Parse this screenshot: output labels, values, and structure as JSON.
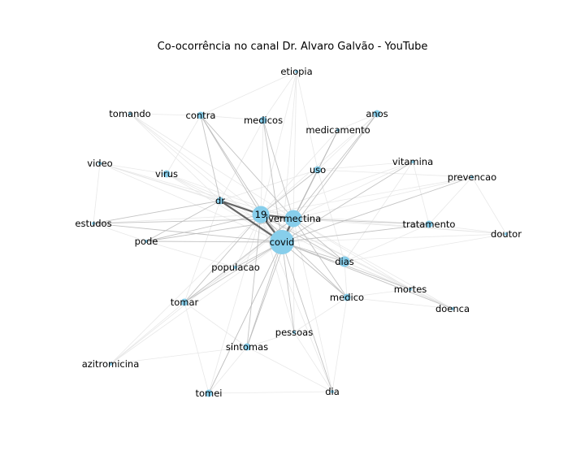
{
  "title": "Co-ocorrência no canal Dr. Alvaro Galvão - YouTube",
  "colors": {
    "node": "#87ceeb",
    "edge_light": "#e6e6e6",
    "edge_mid": "#b8b8b8",
    "edge_dark": "#555555",
    "background": "#ffffff",
    "text": "#000000"
  },
  "nodes": [
    {
      "id": "covid",
      "label": "covid",
      "weight": 5
    },
    {
      "id": "ivermectina",
      "label": "ivermectina",
      "weight": 3
    },
    {
      "id": "19",
      "label": "19",
      "weight": 3
    },
    {
      "id": "etiopia",
      "label": "etiopia",
      "weight": 0
    },
    {
      "id": "tomando",
      "label": "tomando",
      "weight": 0
    },
    {
      "id": "contra",
      "label": "contra",
      "weight": 1
    },
    {
      "id": "medicos",
      "label": "medicos",
      "weight": 1
    },
    {
      "id": "anos",
      "label": "anos",
      "weight": 1
    },
    {
      "id": "medicamento",
      "label": "medicamento",
      "weight": 0
    },
    {
      "id": "video",
      "label": "video",
      "weight": 0
    },
    {
      "id": "virus",
      "label": "virus",
      "weight": 1
    },
    {
      "id": "uso",
      "label": "uso",
      "weight": 1
    },
    {
      "id": "vitamina",
      "label": "vitamina",
      "weight": 0
    },
    {
      "id": "prevencao",
      "label": "prevencao",
      "weight": 0
    },
    {
      "id": "dr",
      "label": "dr",
      "weight": 1
    },
    {
      "id": "estudos",
      "label": "estudos",
      "weight": 0
    },
    {
      "id": "tratamento",
      "label": "tratamento",
      "weight": 1
    },
    {
      "id": "doutor",
      "label": "doutor",
      "weight": 0
    },
    {
      "id": "pode",
      "label": "pode",
      "weight": 0
    },
    {
      "id": "populacao",
      "label": "populacao",
      "weight": 0
    },
    {
      "id": "dias",
      "label": "dias",
      "weight": 2
    },
    {
      "id": "mortes",
      "label": "mortes",
      "weight": 0
    },
    {
      "id": "tomar",
      "label": "tomar",
      "weight": 1
    },
    {
      "id": "medico",
      "label": "medico",
      "weight": 1
    },
    {
      "id": "doenca",
      "label": "doenca",
      "weight": 0
    },
    {
      "id": "pessoas",
      "label": "pessoas",
      "weight": 0
    },
    {
      "id": "sintomas",
      "label": "sintomas",
      "weight": 1
    },
    {
      "id": "azitromicina",
      "label": "azitromicina",
      "weight": 0
    },
    {
      "id": "tomei",
      "label": "tomei",
      "weight": 1
    },
    {
      "id": "dia",
      "label": "dia",
      "weight": 0
    }
  ],
  "strong_edges": [
    [
      "covid",
      "19"
    ],
    [
      "covid",
      "ivermectina"
    ],
    [
      "19",
      "ivermectina"
    ],
    [
      "covid",
      "dr"
    ],
    [
      "19",
      "dr"
    ]
  ],
  "mid_edges": [
    [
      "covid",
      "contra"
    ],
    [
      "covid",
      "medicos"
    ],
    [
      "covid",
      "medicamento"
    ],
    [
      "covid",
      "uso"
    ],
    [
      "covid",
      "anos"
    ],
    [
      "covid",
      "tomar"
    ],
    [
      "covid",
      "sintomas"
    ],
    [
      "covid",
      "dias"
    ],
    [
      "covid",
      "medico"
    ],
    [
      "covid",
      "mortes"
    ],
    [
      "covid",
      "tratamento"
    ],
    [
      "covid",
      "populacao"
    ],
    [
      "covid",
      "estudos"
    ],
    [
      "covid",
      "pode"
    ],
    [
      "covid",
      "pessoas"
    ],
    [
      "covid",
      "dia"
    ],
    [
      "covid",
      "tomei"
    ],
    [
      "covid",
      "doenca"
    ],
    [
      "covid",
      "prevencao"
    ],
    [
      "covid",
      "vitamina"
    ],
    [
      "ivermectina",
      "contra"
    ],
    [
      "ivermectina",
      "uso"
    ],
    [
      "ivermectina",
      "medicamento"
    ],
    [
      "ivermectina",
      "anos"
    ],
    [
      "ivermectina",
      "tomar"
    ],
    [
      "ivermectina",
      "sintomas"
    ],
    [
      "ivermectina",
      "dias"
    ],
    [
      "ivermectina",
      "medico"
    ],
    [
      "ivermectina",
      "tratamento"
    ],
    [
      "ivermectina",
      "pode"
    ],
    [
      "ivermectina",
      "medicos"
    ],
    [
      "ivermectina",
      "estudos"
    ],
    [
      "19",
      "contra"
    ],
    [
      "19",
      "tomar"
    ],
    [
      "19",
      "sintomas"
    ],
    [
      "19",
      "dias"
    ],
    [
      "19",
      "medico"
    ],
    [
      "19",
      "pode"
    ],
    [
      "19",
      "uso"
    ],
    [
      "dr",
      "contra"
    ],
    [
      "dr",
      "pode"
    ],
    [
      "dr",
      "estudos"
    ]
  ],
  "light_edges": [
    [
      "covid",
      "etiopia"
    ],
    [
      "covid",
      "tomando"
    ],
    [
      "covid",
      "video"
    ],
    [
      "covid",
      "virus"
    ],
    [
      "covid",
      "doutor"
    ],
    [
      "covid",
      "azitromicina"
    ],
    [
      "ivermectina",
      "etiopia"
    ],
    [
      "ivermectina",
      "tomando"
    ],
    [
      "ivermectina",
      "video"
    ],
    [
      "ivermectina",
      "virus"
    ],
    [
      "ivermectina",
      "vitamina"
    ],
    [
      "ivermectina",
      "prevencao"
    ],
    [
      "ivermectina",
      "doutor"
    ],
    [
      "ivermectina",
      "mortes"
    ],
    [
      "ivermectina",
      "doenca"
    ],
    [
      "ivermectina",
      "pessoas"
    ],
    [
      "ivermectina",
      "dia"
    ],
    [
      "ivermectina",
      "tomei"
    ],
    [
      "ivermectina",
      "populacao"
    ],
    [
      "ivermectina",
      "azitromicina"
    ],
    [
      "19",
      "etiopia"
    ],
    [
      "19",
      "tomando"
    ],
    [
      "19",
      "video"
    ],
    [
      "19",
      "virus"
    ],
    [
      "19",
      "medicos"
    ],
    [
      "19",
      "medicamento"
    ],
    [
      "19",
      "anos"
    ],
    [
      "19",
      "vitamina"
    ],
    [
      "19",
      "prevencao"
    ],
    [
      "19",
      "tratamento"
    ],
    [
      "19",
      "doutor"
    ],
    [
      "19",
      "estudos"
    ],
    [
      "19",
      "populacao"
    ],
    [
      "19",
      "mortes"
    ],
    [
      "19",
      "doenca"
    ],
    [
      "19",
      "pessoas"
    ],
    [
      "19",
      "dia"
    ],
    [
      "19",
      "tomei"
    ],
    [
      "19",
      "azitromicina"
    ],
    [
      "dr",
      "virus"
    ],
    [
      "dr",
      "video"
    ],
    [
      "dr",
      "tomando"
    ],
    [
      "dr",
      "medicos"
    ],
    [
      "dr",
      "uso"
    ],
    [
      "dr",
      "tomar"
    ],
    [
      "dr",
      "dias"
    ],
    [
      "dias",
      "medico"
    ],
    [
      "dias",
      "mortes"
    ],
    [
      "dias",
      "doenca"
    ],
    [
      "dias",
      "tratamento"
    ],
    [
      "dias",
      "uso"
    ],
    [
      "tomar",
      "azitromicina"
    ],
    [
      "tomar",
      "sintomas"
    ],
    [
      "tomar",
      "tomei"
    ],
    [
      "sintomas",
      "tomei"
    ],
    [
      "sintomas",
      "dia"
    ],
    [
      "sintomas",
      "pessoas"
    ],
    [
      "medico",
      "mortes"
    ],
    [
      "medico",
      "doenca"
    ],
    [
      "medico",
      "pessoas"
    ],
    [
      "medico",
      "dia"
    ],
    [
      "tratamento",
      "doutor"
    ],
    [
      "tratamento",
      "prevencao"
    ],
    [
      "tratamento",
      "vitamina"
    ],
    [
      "uso",
      "medicamento"
    ],
    [
      "uso",
      "anos"
    ],
    [
      "uso",
      "vitamina"
    ],
    [
      "uso",
      "prevencao"
    ],
    [
      "contra",
      "medicos"
    ],
    [
      "contra",
      "virus"
    ],
    [
      "contra",
      "tomando"
    ],
    [
      "estudos",
      "pode"
    ],
    [
      "estudos",
      "video"
    ],
    [
      "populacao",
      "pode"
    ],
    [
      "populacao",
      "tomar"
    ],
    [
      "etiopia",
      "medicos"
    ],
    [
      "etiopia",
      "uso"
    ],
    [
      "etiopia",
      "contra"
    ],
    [
      "anos",
      "medicamento"
    ],
    [
      "video",
      "virus"
    ],
    [
      "doutor",
      "dias"
    ],
    [
      "prevencao",
      "doutor"
    ],
    [
      "vitamina",
      "dias"
    ],
    [
      "pessoas",
      "dia"
    ],
    [
      "tomei",
      "dia"
    ],
    [
      "azitromicina",
      "sintomas"
    ],
    [
      "mortes",
      "doenca"
    ]
  ]
}
